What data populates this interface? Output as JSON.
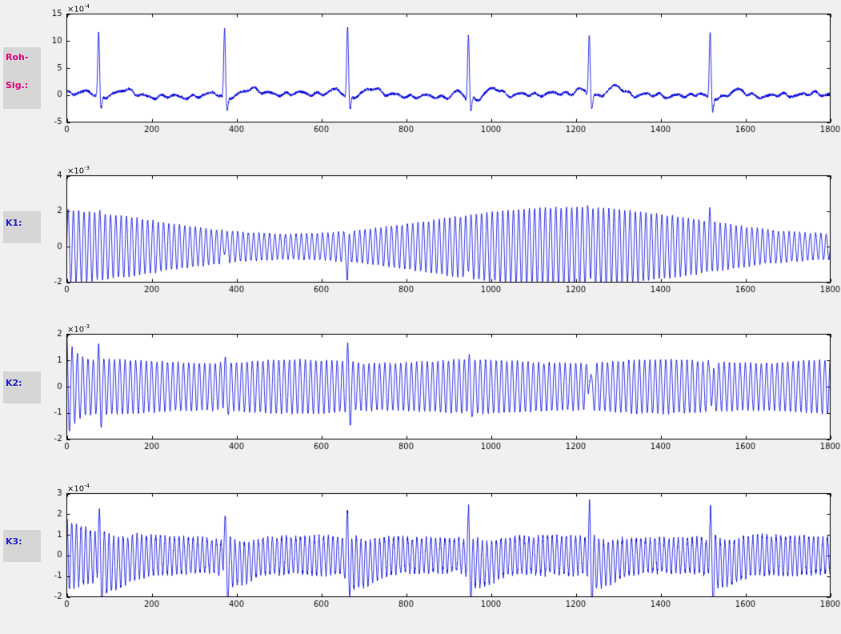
{
  "figure": {
    "bg": "#f0f0f0",
    "plot_bg": "#ffffff",
    "axis_color": "#000000",
    "tick_color": "#111111",
    "line_color": "#0000e0",
    "label_box_bg": "#d6d6d6"
  },
  "chart_data": [
    {
      "type": "line",
      "side_label": {
        "lines": [
          "Roh-",
          "Sig.:"
        ],
        "color": "#e6007d"
      },
      "y_exponent": {
        "base": "×10",
        "exp": "-4"
      },
      "xlim": [
        0,
        1800
      ],
      "ylim": [
        -5,
        15
      ],
      "xticks": [
        0,
        200,
        400,
        600,
        800,
        1000,
        1200,
        1400,
        1600,
        1800
      ],
      "yticks": [
        15,
        10,
        5,
        0,
        -5
      ],
      "legend": "none",
      "grid": false,
      "signal": {
        "model": "ecg",
        "beats": [
          75,
          372,
          662,
          947,
          1232,
          1517
        ],
        "r_amps": [
          11.5,
          12.3,
          12.6,
          11.7,
          11.2,
          11.9
        ],
        "q_depth": 0.7,
        "s_depth": 2.8,
        "t_amp": 1.3,
        "p_amp": 0.8,
        "noise": 0.45
      }
    },
    {
      "type": "line",
      "side_label": {
        "lines": [
          "K1:"
        ],
        "color": "#2222cc"
      },
      "y_exponent": {
        "base": "×10",
        "exp": "-3"
      },
      "xlim": [
        0,
        1800
      ],
      "ylim": [
        -2,
        4
      ],
      "xticks": [
        0,
        200,
        400,
        600,
        800,
        1000,
        1200,
        1400,
        1600,
        1800
      ],
      "yticks": [
        4,
        2,
        0,
        -2
      ],
      "legend": "none",
      "grid": false,
      "signal": {
        "model": "osc",
        "carrier_period": 12.5,
        "carrier_phase": 0,
        "env_base": 1.45,
        "env_mod_amp": 0.75,
        "env_mod_period": 1300,
        "env_mod_center": 1180,
        "beats": [
          75,
          372,
          662,
          947,
          1232,
          1517
        ],
        "spike_up": [
          0.5,
          0.5,
          -1.5,
          0.4,
          1.1,
          0.9
        ],
        "spike_width": 1.8,
        "noise": 0.06
      }
    },
    {
      "type": "line",
      "side_label": {
        "lines": [
          "K2:"
        ],
        "color": "#2222cc"
      },
      "y_exponent": {
        "base": "×10",
        "exp": "-3"
      },
      "xlim": [
        0,
        1800
      ],
      "ylim": [
        -2,
        2
      ],
      "xticks": [
        0,
        200,
        400,
        600,
        800,
        1000,
        1200,
        1400,
        1600,
        1800
      ],
      "yticks": [
        2,
        1,
        0,
        -1,
        -2
      ],
      "legend": "none",
      "grid": false,
      "signal": {
        "model": "osc",
        "carrier_period": 12.5,
        "carrier_phase": 1.57,
        "env_base": 0.95,
        "env_wobble": [
          0.07,
          430
        ],
        "init": [
          1.1,
          18
        ],
        "beats": [
          75,
          372,
          662,
          947,
          1232,
          1517
        ],
        "spike_up": [
          0.6,
          0.7,
          0.75,
          0.65,
          0.9,
          0.7
        ],
        "spike_down": -0.55,
        "spike_down_delay": 6,
        "spike_width": 1.8,
        "noise": 0.05
      }
    },
    {
      "type": "line",
      "side_label": {
        "lines": [
          "K3:"
        ],
        "color": "#2222cc"
      },
      "y_exponent": {
        "base": "×10",
        "exp": "-4"
      },
      "xlim": [
        0,
        1800
      ],
      "ylim": [
        -2,
        3
      ],
      "xticks": [
        0,
        200,
        400,
        600,
        800,
        1000,
        1200,
        1400,
        1600,
        1800
      ],
      "yticks": [
        3,
        2,
        1,
        0,
        -1,
        -2
      ],
      "legend": "none",
      "grid": false,
      "signal": {
        "model": "osc",
        "carrier_period": 11,
        "carrier_phase": 1.2,
        "env_base": 0.85,
        "env_wobble": [
          0.06,
          510
        ],
        "init": [
          0.9,
          60
        ],
        "post_boost": [
          0.5,
          45
        ],
        "beats": [
          75,
          372,
          662,
          947,
          1232,
          1517
        ],
        "spike_up": [
          1.5,
          1.5,
          1.6,
          1.5,
          1.6,
          1.5
        ],
        "spike_down": -1.0,
        "spike_down_delay": 7,
        "base_dip": [
          -0.4,
          35,
          28
        ],
        "spike_width": 1.9,
        "noise": 0.12
      }
    }
  ]
}
